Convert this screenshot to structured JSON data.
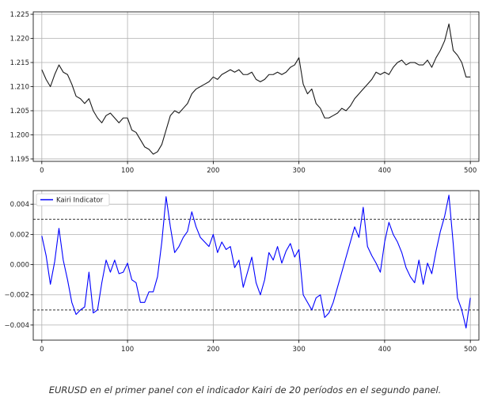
{
  "caption": "EURUSD en el primer panel con el indicador Kairi de 20 períodos en el segundo panel.",
  "colors": {
    "price_line": "#1a1a1a",
    "kairi_line": "#0000ff",
    "grid": "#b0b0b0",
    "axes": "#000000",
    "threshold": "#333333"
  },
  "chart_data": [
    {
      "type": "line",
      "title": "",
      "xlabel": "",
      "ylabel": "",
      "xlim": [
        -10,
        510
      ],
      "ylim": [
        1.1945,
        1.2255
      ],
      "xticks": [
        0,
        100,
        200,
        300,
        400,
        500
      ],
      "xtick_labels": [
        "0",
        "100",
        "200",
        "300",
        "400",
        "500"
      ],
      "yticks": [
        1.195,
        1.2,
        1.205,
        1.21,
        1.215,
        1.22,
        1.225
      ],
      "ytick_labels": [
        "1.195",
        "1.200",
        "1.205",
        "1.210",
        "1.215",
        "1.220",
        "1.225"
      ],
      "grid": true,
      "series": [
        {
          "name": "",
          "x": [
            0,
            5,
            10,
            15,
            20,
            25,
            30,
            35,
            40,
            45,
            50,
            55,
            60,
            65,
            70,
            75,
            80,
            85,
            90,
            95,
            100,
            105,
            110,
            115,
            120,
            125,
            130,
            135,
            140,
            145,
            150,
            155,
            160,
            165,
            170,
            175,
            180,
            185,
            190,
            195,
            200,
            205,
            210,
            215,
            220,
            225,
            230,
            235,
            240,
            245,
            250,
            255,
            260,
            265,
            270,
            275,
            280,
            285,
            290,
            295,
            300,
            305,
            310,
            315,
            320,
            325,
            330,
            335,
            340,
            345,
            350,
            355,
            360,
            365,
            370,
            375,
            380,
            385,
            390,
            395,
            400,
            405,
            410,
            415,
            420,
            425,
            430,
            435,
            440,
            445,
            450,
            455,
            460,
            465,
            470,
            475,
            480,
            485,
            490,
            495,
            500
          ],
          "y": [
            1.2135,
            1.2115,
            1.21,
            1.2125,
            1.2145,
            1.213,
            1.2125,
            1.2105,
            1.208,
            1.2075,
            1.2065,
            1.2075,
            1.205,
            1.2035,
            1.2025,
            1.204,
            1.2045,
            1.2035,
            1.2025,
            1.2035,
            1.2035,
            1.201,
            1.2005,
            1.199,
            1.1975,
            1.197,
            1.196,
            1.1965,
            1.198,
            1.201,
            1.204,
            1.205,
            1.2045,
            1.2055,
            1.2065,
            1.2085,
            1.2095,
            1.21,
            1.2105,
            1.211,
            1.212,
            1.2115,
            1.2125,
            1.213,
            1.2135,
            1.213,
            1.2135,
            1.2125,
            1.2125,
            1.213,
            1.2115,
            1.211,
            1.2115,
            1.2125,
            1.2125,
            1.213,
            1.2125,
            1.213,
            1.214,
            1.2145,
            1.216,
            1.2105,
            1.2085,
            1.2095,
            1.2065,
            1.2055,
            1.2035,
            1.2035,
            1.204,
            1.2045,
            1.2055,
            1.205,
            1.206,
            1.2075,
            1.2085,
            1.2095,
            1.2105,
            1.2115,
            1.213,
            1.2125,
            1.213,
            1.2125,
            1.214,
            1.215,
            1.2155,
            1.2145,
            1.215,
            1.215,
            1.2145,
            1.2145,
            1.2155,
            1.214,
            1.216,
            1.2175,
            1.2195,
            1.223,
            1.2175,
            1.2165,
            1.215,
            1.212,
            1.212
          ]
        }
      ]
    },
    {
      "type": "line",
      "title": "",
      "xlabel": "",
      "ylabel": "",
      "xlim": [
        -10,
        510
      ],
      "ylim": [
        -0.005,
        0.0049
      ],
      "xticks": [
        0,
        100,
        200,
        300,
        400,
        500
      ],
      "xtick_labels": [
        "0",
        "100",
        "200",
        "300",
        "400",
        "500"
      ],
      "yticks": [
        -0.004,
        -0.002,
        0.0,
        0.002,
        0.004
      ],
      "ytick_labels": [
        "−0.004",
        "−0.002",
        "0.000",
        "0.002",
        "0.004"
      ],
      "grid": true,
      "legend": {
        "placement": "top-left",
        "entries": [
          "Kairi Indicator"
        ]
      },
      "hlines": [
        0.003,
        -0.003
      ],
      "series": [
        {
          "name": "Kairi Indicator",
          "x": [
            0,
            5,
            10,
            15,
            20,
            25,
            30,
            35,
            40,
            45,
            50,
            55,
            60,
            65,
            70,
            75,
            80,
            85,
            90,
            95,
            100,
            105,
            110,
            115,
            120,
            125,
            130,
            135,
            140,
            145,
            150,
            155,
            160,
            165,
            170,
            175,
            180,
            185,
            190,
            195,
            200,
            205,
            210,
            215,
            220,
            225,
            230,
            235,
            240,
            245,
            250,
            255,
            260,
            265,
            270,
            275,
            280,
            285,
            290,
            295,
            300,
            305,
            310,
            315,
            320,
            325,
            330,
            335,
            340,
            345,
            350,
            355,
            360,
            365,
            370,
            375,
            380,
            385,
            390,
            395,
            400,
            405,
            410,
            415,
            420,
            425,
            430,
            435,
            440,
            445,
            450,
            455,
            460,
            465,
            470,
            475,
            480,
            485,
            490,
            495,
            500
          ],
          "y": [
            0.0019,
            0.0006,
            -0.0013,
            0.0002,
            0.0024,
            0.0003,
            -0.001,
            -0.0025,
            -0.0033,
            -0.003,
            -0.0028,
            -0.0005,
            -0.0032,
            -0.003,
            -0.0012,
            0.0003,
            -0.0005,
            0.0003,
            -0.0006,
            -0.0005,
            0.0001,
            -0.001,
            -0.0012,
            -0.0025,
            -0.0025,
            -0.0018,
            -0.0018,
            -0.0008,
            0.0015,
            0.0045,
            0.0025,
            0.0008,
            0.0012,
            0.0018,
            0.0022,
            0.0035,
            0.0025,
            0.0018,
            0.0015,
            0.0012,
            0.002,
            0.0008,
            0.0015,
            0.001,
            0.0012,
            -0.0002,
            0.0003,
            -0.0015,
            -0.0005,
            0.0005,
            -0.0012,
            -0.002,
            -0.001,
            0.0008,
            0.0003,
            0.0012,
            0.0001,
            0.0009,
            0.0014,
            0.0005,
            0.001,
            -0.002,
            -0.0025,
            -0.003,
            -0.0022,
            -0.002,
            -0.0035,
            -0.0032,
            -0.0025,
            -0.0015,
            -0.0005,
            0.0005,
            0.0015,
            0.0025,
            0.0018,
            0.0038,
            0.0012,
            0.0006,
            0.0001,
            -0.0005,
            0.0015,
            0.0028,
            0.002,
            0.0015,
            0.0008,
            -0.0002,
            -0.0008,
            -0.0012,
            0.0003,
            -0.0013,
            0.0001,
            -0.0006,
            0.0009,
            0.0022,
            0.0032,
            0.0046,
            0.0014,
            -0.0022,
            -0.003,
            -0.0042,
            -0.0022
          ]
        }
      ]
    }
  ]
}
